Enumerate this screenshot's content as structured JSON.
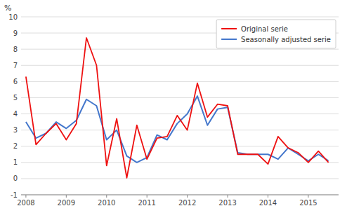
{
  "chart_data": {
    "type": "line",
    "y_label": "%",
    "x": [
      2008.0,
      2008.25,
      2008.5,
      2008.75,
      2009.0,
      2009.25,
      2009.5,
      2009.75,
      2010.0,
      2010.25,
      2010.5,
      2010.75,
      2011.0,
      2011.25,
      2011.5,
      2011.75,
      2012.0,
      2012.25,
      2012.5,
      2012.75,
      2013.0,
      2013.25,
      2013.5,
      2013.75,
      2014.0,
      2014.25,
      2014.5,
      2014.75,
      2015.0,
      2015.25,
      2015.5
    ],
    "series": [
      {
        "name": "Original serie",
        "color": "#ee1111",
        "values": [
          6.3,
          2.1,
          2.8,
          3.4,
          2.4,
          3.4,
          8.7,
          7.0,
          0.8,
          3.7,
          0.05,
          3.3,
          1.2,
          2.5,
          2.6,
          3.9,
          3.0,
          5.9,
          3.8,
          4.6,
          4.5,
          1.5,
          1.5,
          1.5,
          0.9,
          2.6,
          1.9,
          1.6,
          1.0,
          1.7,
          1.0
        ]
      },
      {
        "name": "Seasonally adjusted serie",
        "color": "#4477cc",
        "values": [
          3.5,
          2.5,
          2.8,
          3.5,
          3.1,
          3.6,
          4.9,
          4.5,
          2.4,
          3.0,
          1.4,
          1.0,
          1.3,
          2.7,
          2.4,
          3.4,
          4.0,
          5.1,
          3.3,
          4.3,
          4.4,
          1.6,
          1.5,
          1.5,
          1.5,
          1.2,
          1.9,
          1.5,
          1.1,
          1.5,
          1.1
        ]
      }
    ],
    "xlim": [
      2007.88,
      2015.75
    ],
    "xticks": [
      2008,
      2009,
      2010,
      2011,
      2012,
      2013,
      2014,
      2015
    ],
    "ylim": [
      -1,
      10
    ],
    "yticks": [
      -1,
      0,
      1,
      2,
      3,
      4,
      5,
      6,
      7,
      8,
      9,
      10
    ],
    "grid": true,
    "legend": "upper right"
  }
}
